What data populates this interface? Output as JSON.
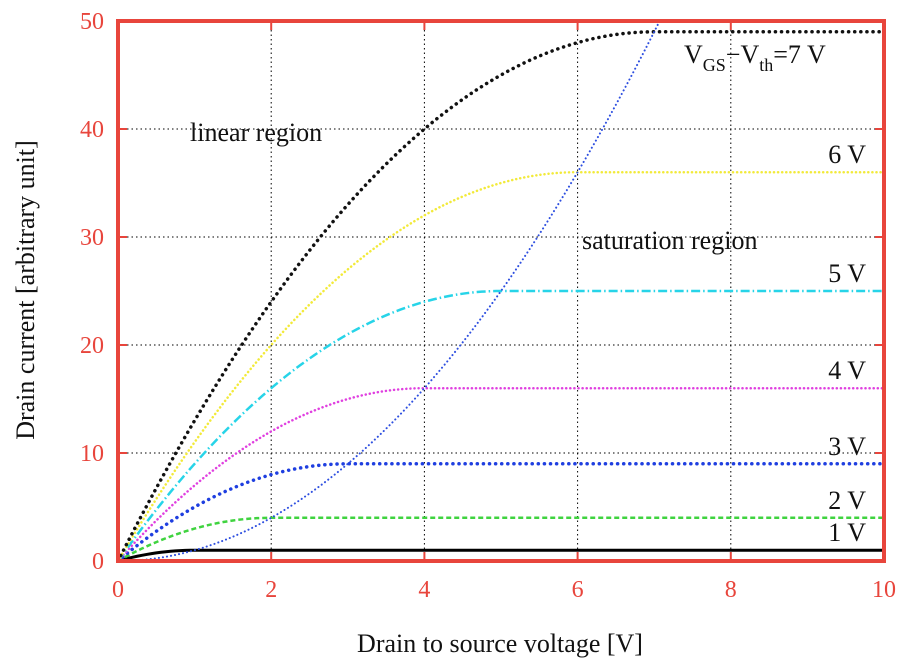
{
  "chart_data": {
    "type": "line",
    "title": "",
    "xlabel": "Drain to source voltage [V]",
    "ylabel": "Drain current [arbitrary unit]",
    "xlim": [
      0,
      10
    ],
    "ylim": [
      0,
      50
    ],
    "xticks": [
      "0",
      "2",
      "4",
      "6",
      "8",
      "10"
    ],
    "yticks": [
      "0",
      "10",
      "20",
      "30",
      "40",
      "50"
    ],
    "grid": true,
    "frame_color": "#e8453c",
    "annotations": {
      "linear": "linear region",
      "saturation": "saturation region",
      "top_label_main": "V",
      "top_label_sub1": "GS",
      "top_label_dash": "−V",
      "top_label_sub2": "th",
      "top_label_tail": "=7 V"
    },
    "series": [
      {
        "label": "1 V",
        "vov": 1,
        "color": "#000000",
        "style": "solid",
        "saturation_value": 1
      },
      {
        "label": "2 V",
        "vov": 2,
        "color": "#3fd33f",
        "style": "dashed",
        "saturation_value": 4
      },
      {
        "label": "3 V",
        "vov": 3,
        "color": "#1f3fe0",
        "style": "dotted",
        "saturation_value": 9
      },
      {
        "label": "4 V",
        "vov": 4,
        "color": "#e040e0",
        "style": "dotted-fine",
        "saturation_value": 16
      },
      {
        "label": "5 V",
        "vov": 5,
        "color": "#27d4e8",
        "style": "dashdot",
        "saturation_value": 25
      },
      {
        "label": "6 V",
        "vov": 6,
        "color": "#f2ea3a",
        "style": "dotted-fine",
        "saturation_value": 36
      },
      {
        "label": "",
        "vov": 7,
        "color": "#111111",
        "style": "dotted",
        "saturation_value": 49
      }
    ],
    "boundary": {
      "color": "#2e4fe0",
      "style": "dotted",
      "equation": "I = V^2"
    }
  }
}
